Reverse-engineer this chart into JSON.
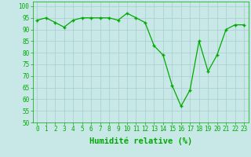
{
  "x": [
    0,
    1,
    2,
    3,
    4,
    5,
    6,
    7,
    8,
    9,
    10,
    11,
    12,
    13,
    14,
    15,
    16,
    17,
    18,
    19,
    20,
    21,
    22,
    23
  ],
  "y": [
    94,
    95,
    93,
    91,
    94,
    95,
    95,
    95,
    95,
    94,
    97,
    95,
    93,
    83,
    79,
    66,
    57,
    64,
    85,
    72,
    79,
    90,
    92,
    92
  ],
  "line_color": "#00aa00",
  "marker": "+",
  "bg_color": "#c8e8e8",
  "grid_color": "#aacccc",
  "xlabel": "Humidité relative (%)",
  "ylim": [
    50,
    102
  ],
  "yticks": [
    50,
    55,
    60,
    65,
    70,
    75,
    80,
    85,
    90,
    95,
    100
  ],
  "xticks": [
    0,
    1,
    2,
    3,
    4,
    5,
    6,
    7,
    8,
    9,
    10,
    11,
    12,
    13,
    14,
    15,
    16,
    17,
    18,
    19,
    20,
    21,
    22,
    23
  ],
  "xlabel_color": "#00aa00",
  "tick_color": "#00aa00",
  "axis_color": "#00aa00",
  "xlabel_fontsize": 7.5,
  "tick_fontsize": 5.5
}
